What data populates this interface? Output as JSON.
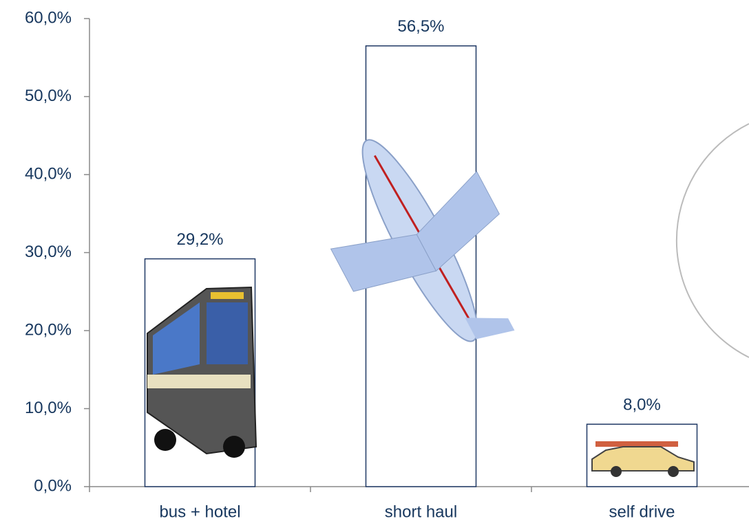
{
  "chart_data": {
    "type": "bar",
    "categories": [
      "bus + hotel",
      "short haul",
      "self drive"
    ],
    "values": [
      29.2,
      56.5,
      8.0
    ],
    "value_labels": [
      "29,2%",
      "56,5%",
      "8,0%"
    ],
    "color": "#ffffff",
    "edge_color": "#1f3864",
    "ylim": [
      0,
      60
    ],
    "yticks": [
      {
        "value": 0,
        "label": "0,0%"
      },
      {
        "value": 10,
        "label": "10,0%"
      },
      {
        "value": 20,
        "label": "20,0%"
      },
      {
        "value": 30,
        "label": "30,0%"
      },
      {
        "value": 40,
        "label": "40,0%"
      },
      {
        "value": 50,
        "label": "50,0%"
      },
      {
        "value": 60,
        "label": "60,0%"
      }
    ],
    "grid": false
  }
}
